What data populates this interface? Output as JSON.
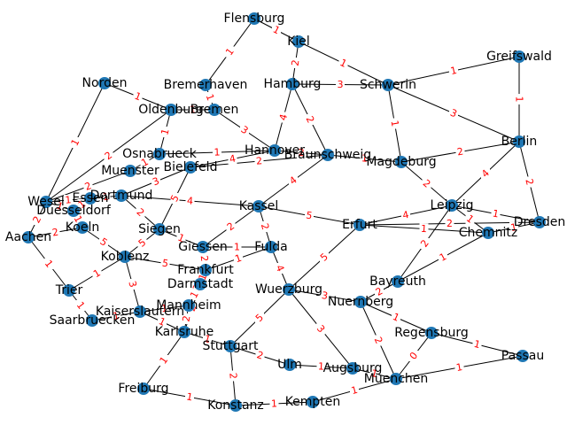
{
  "graph": {
    "node_color": "#1f77b4",
    "edge_color": "#000000",
    "weight_color": "#ff0000",
    "nodes": [
      "Flensburg",
      "Kiel",
      "Schwerin",
      "Greifswald",
      "Hamburg",
      "Bremerhaven",
      "Bremen",
      "Oldenburg",
      "Norden",
      "Hannover",
      "Braunschweig",
      "Magdeburg",
      "Berlin",
      "Osnabrueck",
      "Bielefeld",
      "Muenster",
      "Wesel",
      "Essen",
      "Dortmund",
      "Duesseldorf",
      "Aachen",
      "Koeln",
      "Siegen",
      "Kassel",
      "Erfurt",
      "Leipzig",
      "Dresden",
      "Chemnitz",
      "Giessen",
      "Fulda",
      "Koblenz",
      "Trier",
      "Frankfurt",
      "Darmstadt",
      "Wuerzburg",
      "Bayreuth",
      "Nuernberg",
      "Mannheim",
      "Kaiserslautern",
      "Saarbruecken",
      "Karlsruhe",
      "Stuttgart",
      "Ulm",
      "Augsburg",
      "Regensburg",
      "Passau",
      "Muenchen",
      "Freiburg",
      "Konstanz",
      "Kempten"
    ],
    "edges": [
      {
        "a": "Flensburg",
        "b": "Kiel",
        "w": "1"
      },
      {
        "a": "Flensburg",
        "b": "Bremerhaven",
        "w": "1"
      },
      {
        "a": "Kiel",
        "b": "Hamburg",
        "w": "2"
      },
      {
        "a": "Kiel",
        "b": "Schwerin",
        "w": "1"
      },
      {
        "a": "Schwerin",
        "b": "Greifswald",
        "w": "1"
      },
      {
        "a": "Schwerin",
        "b": "Hamburg",
        "w": "3"
      },
      {
        "a": "Schwerin",
        "b": "Berlin",
        "w": "3"
      },
      {
        "a": "Schwerin",
        "b": "Magdeburg",
        "w": "1"
      },
      {
        "a": "Greifswald",
        "b": "Berlin",
        "w": "1"
      },
      {
        "a": "Hamburg",
        "b": "Hannover",
        "w": "4"
      },
      {
        "a": "Hamburg",
        "b": "Braunschweig",
        "w": "2"
      },
      {
        "a": "Bremerhaven",
        "b": "Bremen",
        "w": "1"
      },
      {
        "a": "Bremen",
        "b": "Oldenburg",
        "w": "1"
      },
      {
        "a": "Bremen",
        "b": "Hannover",
        "w": "3"
      },
      {
        "a": "Oldenburg",
        "b": "Norden",
        "w": "1"
      },
      {
        "a": "Oldenburg",
        "b": "Osnabrueck",
        "w": "1"
      },
      {
        "a": "Oldenburg",
        "b": "Wesel",
        "w": "2"
      },
      {
        "a": "Norden",
        "b": "Wesel",
        "w": "1"
      },
      {
        "a": "Hannover",
        "b": "Braunschweig",
        "w": "2"
      },
      {
        "a": "Hannover",
        "b": "Osnabrueck",
        "w": "1"
      },
      {
        "a": "Hannover",
        "b": "Bielefeld",
        "w": "4"
      },
      {
        "a": "Braunschweig",
        "b": "Magdeburg",
        "w": "1"
      },
      {
        "a": "Braunschweig",
        "b": "Kassel",
        "w": "4"
      },
      {
        "a": "Braunschweig",
        "b": "Bielefeld",
        "w": "2"
      },
      {
        "a": "Magdeburg",
        "b": "Berlin",
        "w": "2"
      },
      {
        "a": "Magdeburg",
        "b": "Leipzig",
        "w": "2"
      },
      {
        "a": "Berlin",
        "b": "Leipzig",
        "w": "4"
      },
      {
        "a": "Berlin",
        "b": "Dresden",
        "w": "2"
      },
      {
        "a": "Osnabrueck",
        "b": "Muenster",
        "w": "1"
      },
      {
        "a": "Bielefeld",
        "b": "Dortmund",
        "w": "3"
      },
      {
        "a": "Bielefeld",
        "b": "Siegen",
        "w": "5"
      },
      {
        "a": "Muenster",
        "b": "Wesel",
        "w": "2"
      },
      {
        "a": "Wesel",
        "b": "Essen",
        "w": "1"
      },
      {
        "a": "Wesel",
        "b": "Duesseldorf",
        "w": "1"
      },
      {
        "a": "Wesel",
        "b": "Aachen",
        "w": "2"
      },
      {
        "a": "Essen",
        "b": "Dortmund",
        "w": "1"
      },
      {
        "a": "Essen",
        "b": "Duesseldorf",
        "w": "1"
      },
      {
        "a": "Dortmund",
        "b": "Kassel",
        "w": "4"
      },
      {
        "a": "Dortmund",
        "b": "Siegen",
        "w": "2"
      },
      {
        "a": "Duesseldorf",
        "b": "Koeln",
        "w": "1"
      },
      {
        "a": "Aachen",
        "b": "Koeln",
        "w": "2"
      },
      {
        "a": "Aachen",
        "b": "Trier",
        "w": "1"
      },
      {
        "a": "Koeln",
        "b": "Koblenz",
        "w": "5"
      },
      {
        "a": "Siegen",
        "b": "Koblenz",
        "w": "5"
      },
      {
        "a": "Siegen",
        "b": "Giessen",
        "w": "1"
      },
      {
        "a": "Kassel",
        "b": "Erfurt",
        "w": "5"
      },
      {
        "a": "Kassel",
        "b": "Giessen",
        "w": "2"
      },
      {
        "a": "Kassel",
        "b": "Fulda",
        "w": "2"
      },
      {
        "a": "Erfurt",
        "b": "Leipzig",
        "w": "4"
      },
      {
        "a": "Erfurt",
        "b": "Dresden",
        "w": "2"
      },
      {
        "a": "Erfurt",
        "b": "Chemnitz",
        "w": "1"
      },
      {
        "a": "Erfurt",
        "b": "Wuerzburg",
        "w": "5"
      },
      {
        "a": "Leipzig",
        "b": "Dresden",
        "w": "1"
      },
      {
        "a": "Leipzig",
        "b": "Chemnitz",
        "w": "1"
      },
      {
        "a": "Leipzig",
        "b": "Bayreuth",
        "w": "2"
      },
      {
        "a": "Chemnitz",
        "b": "Dresden",
        "w": "1"
      },
      {
        "a": "Chemnitz",
        "b": "Bayreuth",
        "w": "1"
      },
      {
        "a": "Giessen",
        "b": "Fulda",
        "w": "1"
      },
      {
        "a": "Giessen",
        "b": "Frankfurt",
        "w": "2"
      },
      {
        "a": "Fulda",
        "b": "Frankfurt",
        "w": "1"
      },
      {
        "a": "Fulda",
        "b": "Wuerzburg",
        "w": "4"
      },
      {
        "a": "Koblenz",
        "b": "Trier",
        "w": "1"
      },
      {
        "a": "Koblenz",
        "b": "Frankfurt",
        "w": "5"
      },
      {
        "a": "Koblenz",
        "b": "Kaiserslautern",
        "w": "3"
      },
      {
        "a": "Trier",
        "b": "Saarbruecken",
        "w": "1"
      },
      {
        "a": "Frankfurt",
        "b": "Darmstadt",
        "w": "1"
      },
      {
        "a": "Frankfurt",
        "b": "Mannheim",
        "w": "3"
      },
      {
        "a": "Darmstadt",
        "b": "Mannheim",
        "w": "1"
      },
      {
        "a": "Darmstadt",
        "b": "Karlsruhe",
        "w": "2"
      },
      {
        "a": "Wuerzburg",
        "b": "Nuernberg",
        "w": "3"
      },
      {
        "a": "Wuerzburg",
        "b": "Stuttgart",
        "w": "5"
      },
      {
        "a": "Wuerzburg",
        "b": "Augsburg",
        "w": "3"
      },
      {
        "a": "Bayreuth",
        "b": "Nuernberg",
        "w": "2"
      },
      {
        "a": "Nuernberg",
        "b": "Regensburg",
        "w": "1"
      },
      {
        "a": "Nuernberg",
        "b": "Muenchen",
        "w": "2"
      },
      {
        "a": "Mannheim",
        "b": "Kaiserslautern",
        "w": "1"
      },
      {
        "a": "Mannheim",
        "b": "Karlsruhe",
        "w": "2"
      },
      {
        "a": "Kaiserslautern",
        "b": "Saarbruecken",
        "w": "1"
      },
      {
        "a": "Kaiserslautern",
        "b": "Karlsruhe",
        "w": "1"
      },
      {
        "a": "Karlsruhe",
        "b": "Stuttgart",
        "w": "1"
      },
      {
        "a": "Karlsruhe",
        "b": "Freiburg",
        "w": "1"
      },
      {
        "a": "Stuttgart",
        "b": "Ulm",
        "w": "2"
      },
      {
        "a": "Stuttgart",
        "b": "Konstanz",
        "w": "2"
      },
      {
        "a": "Ulm",
        "b": "Augsburg",
        "w": "1"
      },
      {
        "a": "Augsburg",
        "b": "Muenchen",
        "w": "1"
      },
      {
        "a": "Regensburg",
        "b": "Passau",
        "w": "1"
      },
      {
        "a": "Regensburg",
        "b": "Muenchen",
        "w": "0"
      },
      {
        "a": "Passau",
        "b": "Muenchen",
        "w": "1"
      },
      {
        "a": "Muenchen",
        "b": "Kempten",
        "w": "1"
      },
      {
        "a": "Freiburg",
        "b": "Konstanz",
        "w": "1"
      },
      {
        "a": "Konstanz",
        "b": "Kempten",
        "w": "1"
      }
    ]
  }
}
